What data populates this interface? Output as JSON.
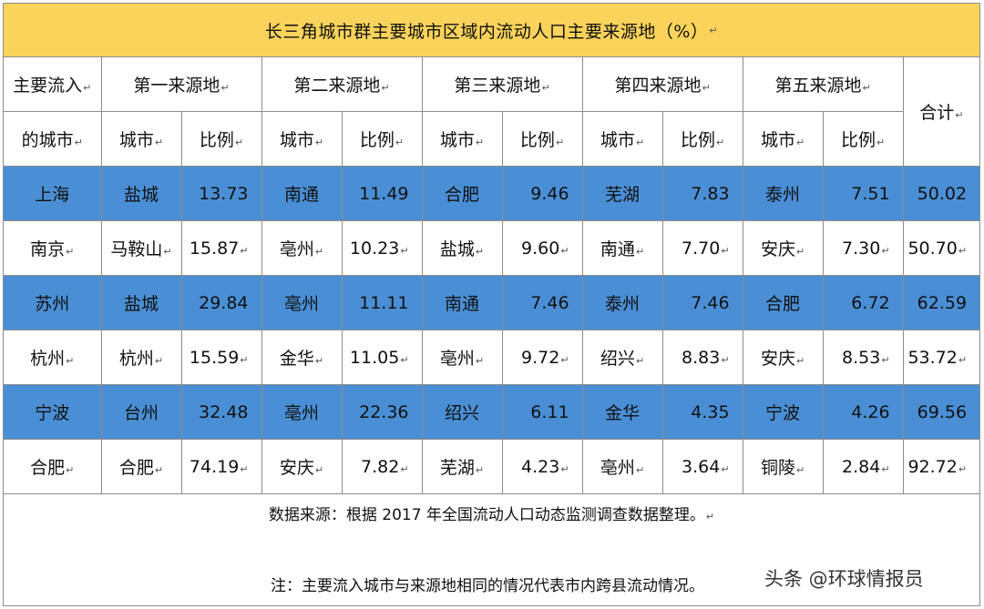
{
  "title": "长三角城市群主要城市区域内流动人口主要来源地（%）",
  "header": {
    "dest_col_line1": "主要流入",
    "dest_col_line2": "的城市",
    "sources": [
      "第一来源地",
      "第二来源地",
      "第三来源地",
      "第四来源地",
      "第五来源地"
    ],
    "city_label": "城市",
    "ratio_label": "比例",
    "total_label": "合计"
  },
  "rows": [
    {
      "city": "上海",
      "cells": [
        [
          "盐城",
          "13.73"
        ],
        [
          "南通",
          "11.49"
        ],
        [
          "合肥",
          "9.46"
        ],
        [
          "芜湖",
          "7.83"
        ],
        [
          "泰州",
          "7.51"
        ]
      ],
      "total": "50.02"
    },
    {
      "city": "南京",
      "cells": [
        [
          "马鞍山",
          "15.87"
        ],
        [
          "亳州",
          "10.23"
        ],
        [
          "盐城",
          "9.60"
        ],
        [
          "南通",
          "7.70"
        ],
        [
          "安庆",
          "7.30"
        ]
      ],
      "total": "50.70"
    },
    {
      "city": "苏州",
      "cells": [
        [
          "盐城",
          "29.84"
        ],
        [
          "亳州",
          "11.11"
        ],
        [
          "南通",
          "7.46"
        ],
        [
          "泰州",
          "7.46"
        ],
        [
          "合肥",
          "6.72"
        ]
      ],
      "total": "62.59"
    },
    {
      "city": "杭州",
      "cells": [
        [
          "杭州",
          "15.59"
        ],
        [
          "金华",
          "11.05"
        ],
        [
          "亳州",
          "9.72"
        ],
        [
          "绍兴",
          "8.83"
        ],
        [
          "安庆",
          "8.53"
        ]
      ],
      "total": "53.72"
    },
    {
      "city": "宁波",
      "cells": [
        [
          "台州",
          "32.48"
        ],
        [
          "亳州",
          "22.36"
        ],
        [
          "绍兴",
          "6.11"
        ],
        [
          "金华",
          "4.35"
        ],
        [
          "宁波",
          "4.26"
        ]
      ],
      "total": "69.56"
    },
    {
      "city": "合肥",
      "cells": [
        [
          "合肥",
          "74.19"
        ],
        [
          "安庆",
          "7.82"
        ],
        [
          "芜湖",
          "4.23"
        ],
        [
          "亳州",
          "3.64"
        ],
        [
          "铜陵",
          "2.84"
        ]
      ],
      "total": "92.72"
    }
  ],
  "highlight_color": "#4a8fd5",
  "title_color": "#fbd35a",
  "source_note": "数据来源：根据 2017 年全国流动人口动态监测调查数据整理。",
  "note": "注：主要流入城市与来源地相同的情况代表市内跨县流动情况。",
  "watermark": "头条 @环球情报员"
}
